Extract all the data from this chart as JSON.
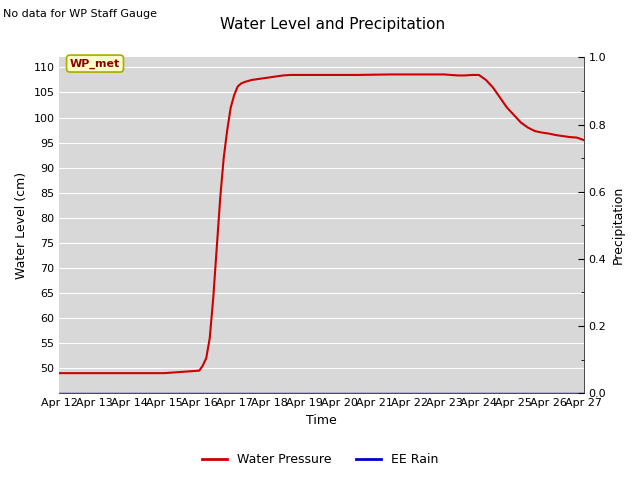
{
  "title": "Water Level and Precipitation",
  "top_left_text": "No data for WP Staff Gauge",
  "xlabel": "Time",
  "ylabel_left": "Water Level (cm)",
  "ylabel_right": "Precipitation",
  "ylim_left": [
    45,
    112
  ],
  "ylim_right": [
    0.0,
    1.0
  ],
  "yticks_left": [
    50,
    55,
    60,
    65,
    70,
    75,
    80,
    85,
    90,
    95,
    100,
    105,
    110
  ],
  "yticks_right": [
    0.0,
    0.2,
    0.4,
    0.6,
    0.8,
    1.0
  ],
  "yticks_right_minor": [
    0.1,
    0.3,
    0.5,
    0.7,
    0.9
  ],
  "xtick_labels": [
    "Apr 12",
    "Apr 13",
    "Apr 14",
    "Apr 15",
    "Apr 16",
    "Apr 17",
    "Apr 18",
    "Apr 19",
    "Apr 20",
    "Apr 21",
    "Apr 22",
    "Apr 23",
    "Apr 24",
    "Apr 25",
    "Apr 26",
    "Apr 27"
  ],
  "bg_color": "#ffffff",
  "plot_bg_color": "#d8d8d8",
  "grid_color": "#ffffff",
  "line_color": "#cc0000",
  "rain_color": "#0000cc",
  "legend_wp_label": "Water Pressure",
  "legend_rain_label": "EE Rain",
  "annotation_label": "WP_met",
  "annotation_bg": "#ffffcc",
  "annotation_border": "#aaaa00",
  "water_level_x": [
    0,
    1,
    2,
    3,
    4.0,
    4.05,
    4.1,
    4.2,
    4.3,
    4.4,
    4.5,
    4.6,
    4.7,
    4.8,
    4.9,
    5.0,
    5.1,
    5.2,
    5.3,
    5.4,
    5.5,
    5.6,
    5.7,
    5.8,
    5.9,
    6.0,
    6.1,
    6.2,
    6.3,
    6.4,
    6.5,
    6.6,
    6.7,
    6.8,
    6.9,
    7.0,
    7.5,
    8.0,
    8.5,
    9.0,
    9.5,
    10.0,
    10.5,
    11.0,
    11.1,
    11.2,
    11.4,
    11.6,
    11.8,
    12.0,
    12.2,
    12.4,
    12.6,
    12.8,
    13.0,
    13.2,
    13.4,
    13.6,
    13.8,
    14.0,
    14.2,
    14.4,
    14.6,
    14.8,
    15.0
  ],
  "water_level_y": [
    49.0,
    49.0,
    49.0,
    49.0,
    49.5,
    50.0,
    50.5,
    52.0,
    56.0,
    64.0,
    74.0,
    84.0,
    92.0,
    97.5,
    102.0,
    104.5,
    106.2,
    106.8,
    107.1,
    107.3,
    107.5,
    107.6,
    107.7,
    107.8,
    107.9,
    108.0,
    108.1,
    108.2,
    108.3,
    108.4,
    108.45,
    108.5,
    108.5,
    108.5,
    108.5,
    108.5,
    108.5,
    108.5,
    108.5,
    108.55,
    108.6,
    108.6,
    108.6,
    108.6,
    108.55,
    108.5,
    108.4,
    108.4,
    108.5,
    108.5,
    107.5,
    106.0,
    104.0,
    102.0,
    100.5,
    99.0,
    98.0,
    97.3,
    97.0,
    96.8,
    96.5,
    96.3,
    96.1,
    96.0,
    95.5
  ],
  "num_days": 15
}
